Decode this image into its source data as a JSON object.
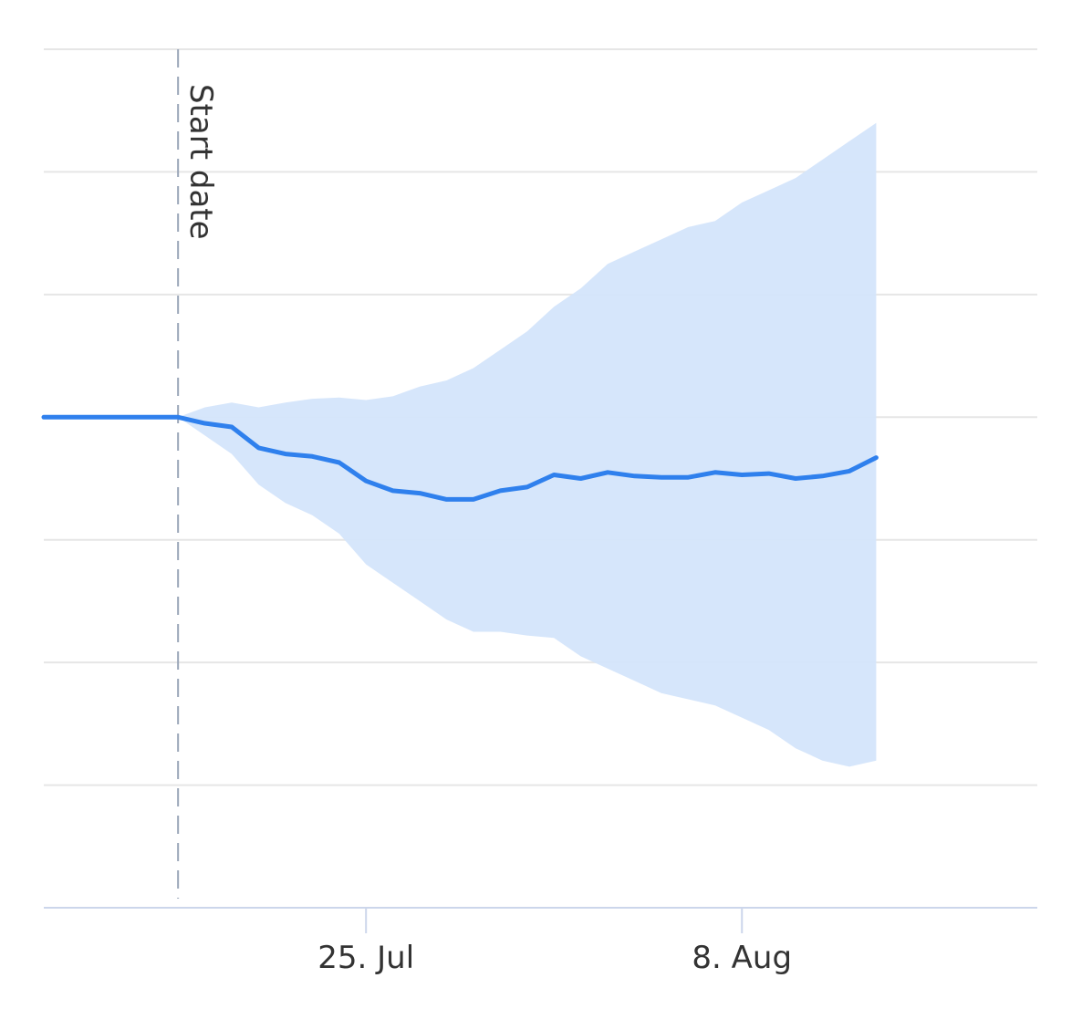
{
  "chart_data": {
    "type": "area",
    "title": "",
    "xlabel": "",
    "ylabel": "",
    "grid": true,
    "legend": false,
    "colors": {
      "line": "#2f80ed",
      "band": "#d4e5fb",
      "plotline": "#9aa6b8"
    },
    "x_ticks": [
      {
        "date": "2021-07-25",
        "label": "25. Jul"
      },
      {
        "date": "2021-08-08",
        "label": "8. Aug"
      }
    ],
    "xlim": [
      "2021-07-13",
      "2021-08-19"
    ],
    "ylim": [
      -4,
      3
    ],
    "y_gridlines": [
      -4,
      -3,
      -2,
      -1,
      0,
      1,
      2,
      3
    ],
    "plot_line": {
      "date": "2021-07-18",
      "label": "Start date"
    },
    "series": [
      {
        "kind": "range",
        "points": [
          [
            "2021-07-18",
            0,
            0
          ],
          [
            "2021-07-19",
            0.08,
            -0.15
          ],
          [
            "2021-07-20",
            0.12,
            -0.3
          ],
          [
            "2021-07-21",
            0.08,
            -0.55
          ],
          [
            "2021-07-22",
            0.12,
            -0.7
          ],
          [
            "2021-07-23",
            0.15,
            -0.8
          ],
          [
            "2021-07-24",
            0.16,
            -0.95
          ],
          [
            "2021-07-25",
            0.14,
            -1.2
          ],
          [
            "2021-07-26",
            0.17,
            -1.35
          ],
          [
            "2021-07-27",
            0.25,
            -1.5
          ],
          [
            "2021-07-28",
            0.3,
            -1.65
          ],
          [
            "2021-07-29",
            0.4,
            -1.75
          ],
          [
            "2021-07-30",
            0.55,
            -1.75
          ],
          [
            "2021-07-31",
            0.7,
            -1.78
          ],
          [
            "2021-08-01",
            0.9,
            -1.8
          ],
          [
            "2021-08-02",
            1.05,
            -1.95
          ],
          [
            "2021-08-03",
            1.25,
            -2.05
          ],
          [
            "2021-08-04",
            1.35,
            -2.15
          ],
          [
            "2021-08-05",
            1.45,
            -2.25
          ],
          [
            "2021-08-06",
            1.55,
            -2.3
          ],
          [
            "2021-08-07",
            1.6,
            -2.35
          ],
          [
            "2021-08-08",
            1.75,
            -2.45
          ],
          [
            "2021-08-09",
            1.85,
            -2.55
          ],
          [
            "2021-08-10",
            1.95,
            -2.7
          ],
          [
            "2021-08-11",
            2.1,
            -2.8
          ],
          [
            "2021-08-12",
            2.25,
            -2.85
          ],
          [
            "2021-08-13",
            2.4,
            -2.8
          ]
        ]
      },
      {
        "kind": "line",
        "points": [
          [
            "2021-07-13",
            0
          ],
          [
            "2021-07-14",
            0
          ],
          [
            "2021-07-15",
            0
          ],
          [
            "2021-07-16",
            0
          ],
          [
            "2021-07-17",
            0
          ],
          [
            "2021-07-18",
            0
          ],
          [
            "2021-07-19",
            -0.05
          ],
          [
            "2021-07-20",
            -0.08
          ],
          [
            "2021-07-21",
            -0.25
          ],
          [
            "2021-07-22",
            -0.3
          ],
          [
            "2021-07-23",
            -0.32
          ],
          [
            "2021-07-24",
            -0.37
          ],
          [
            "2021-07-25",
            -0.52
          ],
          [
            "2021-07-26",
            -0.6
          ],
          [
            "2021-07-27",
            -0.62
          ],
          [
            "2021-07-28",
            -0.67
          ],
          [
            "2021-07-29",
            -0.67
          ],
          [
            "2021-07-30",
            -0.6
          ],
          [
            "2021-07-31",
            -0.57
          ],
          [
            "2021-08-01",
            -0.47
          ],
          [
            "2021-08-02",
            -0.5
          ],
          [
            "2021-08-03",
            -0.45
          ],
          [
            "2021-08-04",
            -0.48
          ],
          [
            "2021-08-05",
            -0.49
          ],
          [
            "2021-08-06",
            -0.49
          ],
          [
            "2021-08-07",
            -0.45
          ],
          [
            "2021-08-08",
            -0.47
          ],
          [
            "2021-08-09",
            -0.46
          ],
          [
            "2021-08-10",
            -0.5
          ],
          [
            "2021-08-11",
            -0.48
          ],
          [
            "2021-08-12",
            -0.44
          ],
          [
            "2021-08-13",
            -0.33
          ]
        ]
      }
    ]
  }
}
